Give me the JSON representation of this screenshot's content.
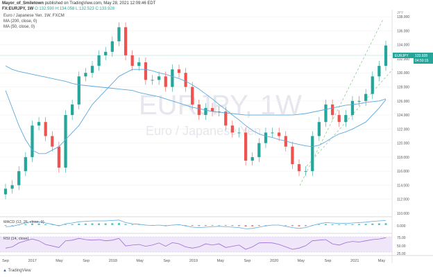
{
  "header": {
    "author": "Mayor_of_Smiletown",
    "published": "published on TradingView.com, May 28, 2021 12:09:46 EDT",
    "symbol": "FX:EURJPY, 1W",
    "ohlc": "O:132.590 H:134.058 L:132.523 C:133.928"
  },
  "legend": {
    "title": "Euro / Japanese Yen, 1W, FXCM",
    "ma200": "MA (200, close, 0)",
    "ma50": "MA (50, close, 0)"
  },
  "watermark": {
    "big": "EURJPY, 1W",
    "small": "Euro / Japanese Yen"
  },
  "price_axis": {
    "currency": "JPY",
    "ticks": [
      "138.000",
      "136.000",
      "134.000",
      "132.000",
      "130.000",
      "128.000",
      "126.000",
      "124.000",
      "122.000",
      "120.000",
      "118.000",
      "116.000",
      "114.000",
      "112.000",
      "110.000"
    ],
    "symbol_tag": "EURJPY",
    "last_price": "133.928",
    "countdown": "04:50:15"
  },
  "macd": {
    "label": "MACD (12, 26, close, 9)",
    "ticks": [
      "0.000"
    ]
  },
  "rsi": {
    "label": "RSI (14, close)",
    "ticks": [
      "75.00",
      "50.00",
      "25.00"
    ]
  },
  "time_axis": [
    "Sep",
    "2017",
    "May",
    "Sep",
    "2018",
    "May",
    "Sep",
    "2019",
    "May",
    "Sep",
    "2020",
    "May",
    "Sep",
    "2021",
    "May"
  ],
  "footer": {
    "brand": "TradingView"
  },
  "colors": {
    "up": "#26a69a",
    "down": "#ef5350",
    "ma": "#5aa9e0",
    "channel": "#7cc67c",
    "rsi": "#9c6ad6"
  },
  "chart_data": {
    "type": "candlestick",
    "title": "Euro / Japanese Yen, 1W, FXCM",
    "ylim": [
      110,
      139
    ],
    "x": [
      "2016-08",
      "2016-09",
      "2016-10",
      "2016-11",
      "2016-12",
      "2017-01",
      "2017-02",
      "2017-03",
      "2017-04",
      "2017-05",
      "2017-06",
      "2017-07",
      "2017-08",
      "2017-09",
      "2017-10",
      "2017-11",
      "2017-12",
      "2018-01",
      "2018-02",
      "2018-03",
      "2018-04",
      "2018-05",
      "2018-06",
      "2018-07",
      "2018-08",
      "2018-09",
      "2018-10",
      "2018-11",
      "2018-12",
      "2019-01",
      "2019-02",
      "2019-03",
      "2019-04",
      "2019-05",
      "2019-06",
      "2019-07",
      "2019-08",
      "2019-09",
      "2019-10",
      "2019-11",
      "2019-12",
      "2020-01",
      "2020-02",
      "2020-03",
      "2020-04",
      "2020-05",
      "2020-06",
      "2020-07",
      "2020-08",
      "2020-09",
      "2020-10",
      "2020-11",
      "2020-12",
      "2021-01",
      "2021-02",
      "2021-03",
      "2021-04",
      "2021-05"
    ],
    "close": [
      113.5,
      114,
      116,
      118,
      122.5,
      123,
      121,
      119.5,
      116.5,
      124,
      125.5,
      129.5,
      130,
      131,
      132.5,
      133,
      134.5,
      136.5,
      132.5,
      131,
      131.5,
      129,
      129,
      129.5,
      128,
      130.5,
      130,
      128,
      125.5,
      124,
      125,
      124.5,
      124.5,
      122.5,
      121.5,
      121.5,
      117.5,
      118,
      120,
      121.5,
      121.5,
      121,
      119.5,
      117,
      116,
      116,
      121,
      123,
      125.5,
      124,
      123,
      124,
      126,
      126,
      127,
      129.5,
      131,
      133.9
    ],
    "ma200": [
      131,
      130.5,
      130.2,
      130,
      129.8,
      129.6,
      129.4,
      129.2,
      129,
      128.8,
      128.5,
      128.3,
      128.2,
      128.1,
      128,
      127.9,
      127.8,
      127.7,
      127.6,
      127.5,
      127.2,
      127,
      126.8,
      126.6,
      126.3,
      126,
      125.7,
      125.4,
      125.1,
      124.9,
      124.7,
      124.5,
      124.4,
      124.3,
      124.2,
      124.1,
      124,
      124,
      124,
      124,
      124,
      124,
      124,
      124,
      124.1,
      124.2,
      124.4,
      124.6,
      124.8,
      125,
      125.2,
      125.4,
      125.5,
      125.6,
      125.8,
      125.9,
      126,
      126.3
    ],
    "ma50": [
      127.5,
      125,
      122.5,
      120.5,
      119,
      118.5,
      118.5,
      119,
      119.5,
      120.5,
      121.5,
      122.5,
      124,
      125.5,
      126.5,
      127.5,
      128.5,
      129.5,
      130,
      130.5,
      130.5,
      130.5,
      130.3,
      130,
      129.8,
      129.5,
      129.2,
      128.8,
      128.3,
      127.7,
      127,
      126.3,
      125.5,
      124.8,
      124,
      123.3,
      122.5,
      121.8,
      121.3,
      121,
      120.8,
      120.5,
      120.3,
      120,
      119.8,
      119.6,
      119.5,
      119.7,
      120.2,
      120.8,
      121.3,
      121.6,
      122,
      122.5,
      123,
      124,
      125,
      126.2
    ],
    "macd": [
      -0.4,
      -0.3,
      0.1,
      0.5,
      0.9,
      0.8,
      0.5,
      0.2,
      -0.2,
      0.3,
      0.5,
      0.8,
      0.9,
      1,
      1,
      1,
      1.1,
      1.2,
      0.6,
      0.3,
      0.2,
      0,
      -0.1,
      0,
      -0.2,
      0,
      0.1,
      -0.2,
      -0.5,
      -0.6,
      -0.5,
      -0.4,
      -0.3,
      -0.4,
      -0.5,
      -0.6,
      -0.9,
      -0.8,
      -0.5,
      -0.2,
      0,
      0,
      -0.3,
      -0.6,
      -0.8,
      -0.6,
      -0.1,
      0.3,
      0.6,
      0.5,
      0.4,
      0.4,
      0.5,
      0.6,
      0.7,
      0.9,
      1,
      1.1
    ],
    "rsi": [
      38,
      42,
      55,
      62,
      68,
      62,
      50,
      45,
      40,
      62,
      64,
      70,
      66,
      64,
      66,
      62,
      64,
      70,
      45,
      48,
      50,
      44,
      48,
      55,
      44,
      56,
      52,
      42,
      38,
      42,
      52,
      48,
      52,
      40,
      44,
      48,
      34,
      42,
      55,
      56,
      55,
      50,
      42,
      34,
      38,
      46,
      62,
      64,
      66,
      52,
      48,
      56,
      60,
      58,
      62,
      66,
      68,
      72
    ]
  }
}
